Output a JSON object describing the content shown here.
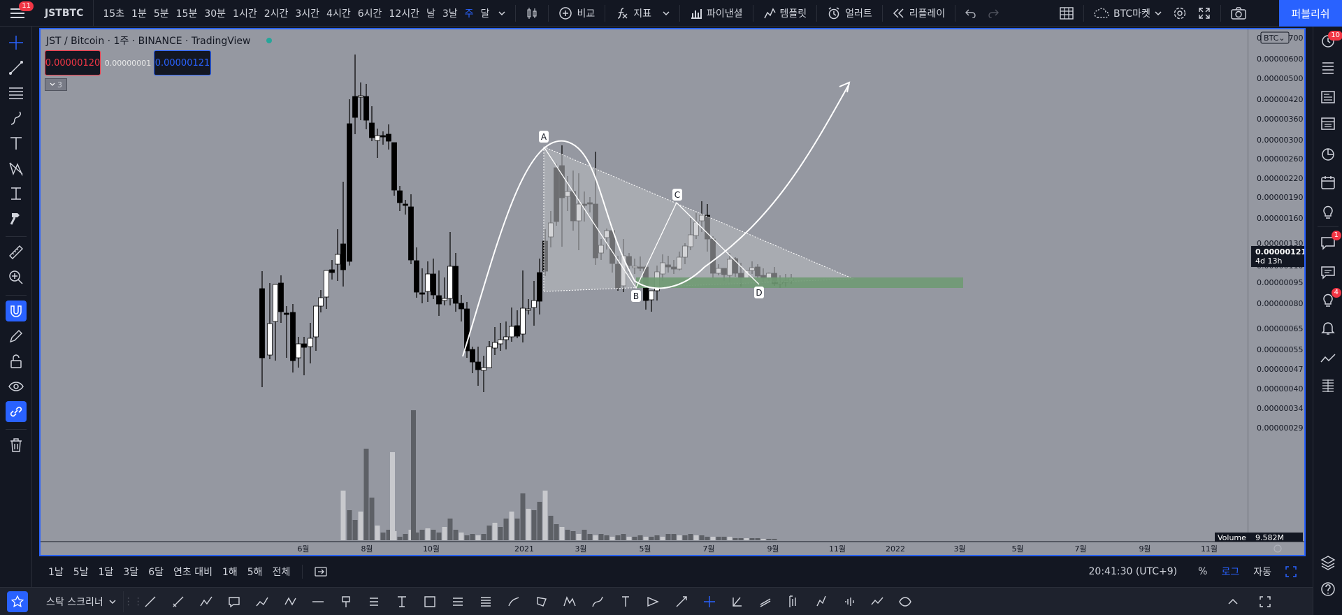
{
  "topbar": {
    "badge": "11",
    "symbol": "JSTBTC",
    "intervals": [
      "15초",
      "1분",
      "5분",
      "15분",
      "30분",
      "1시간",
      "2시간",
      "3시간",
      "4시간",
      "6시간",
      "12시간",
      "날",
      "3날",
      "주",
      "달"
    ],
    "active_interval": "주",
    "buttons": {
      "compare": "비교",
      "indicators": "지표",
      "financials": "파이낸셜",
      "templates": "템플릿",
      "alerts": "얼러트",
      "replay": "리플레이"
    },
    "market": "BTC마켓",
    "publish": "퍼블리쉬"
  },
  "legend": {
    "title": "JST / Bitcoin · 1주 · BINANCE · TradingView",
    "bid": "0.00000120",
    "spread": "0.00000001",
    "ask": "0.00000121",
    "collapse_count": "3"
  },
  "price_axis": {
    "currency": "BTC",
    "labels": [
      "0.00000700",
      "0.00000600",
      "0.00000500",
      "0.00000420",
      "0.00000360",
      "0.00000300",
      "0.00000260",
      "0.00000220",
      "0.00000190",
      "0.00000160",
      "0.00000130",
      "0.00000110",
      "0.00000095",
      "0.00000080",
      "0.00000065",
      "0.00000055",
      "0.00000047",
      "0.00000040",
      "0.00000034",
      "0.00000029"
    ],
    "last_price": "0.00000121",
    "countdown": "4d 13h",
    "volume_label": "Volume",
    "volume_value": "9.582M"
  },
  "time_axis": {
    "labels": [
      "6월",
      "8월",
      "10월",
      "2021",
      "3월",
      "5월",
      "7월",
      "9월",
      "11월",
      "2022",
      "3월",
      "5월",
      "7월",
      "9월",
      "11월"
    ]
  },
  "pattern_labels": {
    "a": "A",
    "b": "B",
    "c": "C",
    "d": "D"
  },
  "chart_data": {
    "type": "candlestick",
    "symbol": "JST / Bitcoin",
    "interval": "1주",
    "exchange": "BINANCE",
    "yscale": "log",
    "last": 1.21e-06,
    "pattern_points": {
      "A": 3.5e-06,
      "B": 1.1e-06,
      "C": 2.1e-06,
      "D": 1.13e-06
    }
  },
  "bottombar": {
    "ranges": [
      "1날",
      "5날",
      "1달",
      "3달",
      "6달",
      "연초 대비",
      "1해",
      "5해",
      "전체"
    ],
    "time": "20:41:30 (UTC+9)",
    "percent": "%",
    "log": "로그",
    "auto": "자동"
  },
  "drawbar": {
    "screener": "스탁 스크리너"
  },
  "rightbar": {
    "badge_watch": "10",
    "badge_chat": "1",
    "badge_ideas": "4"
  }
}
